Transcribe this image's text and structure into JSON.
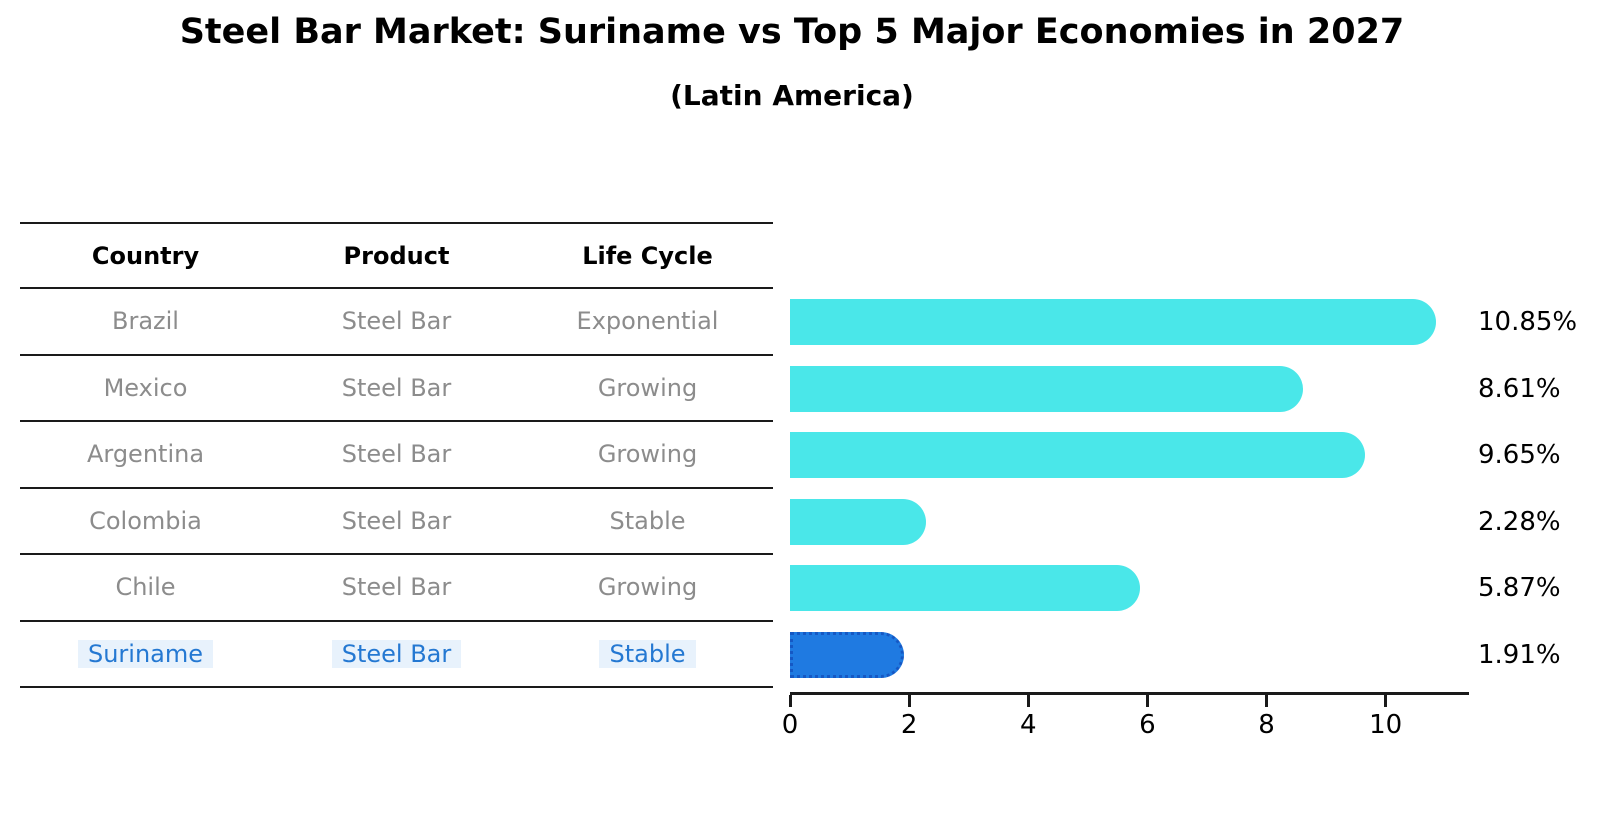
{
  "title": "Steel Bar Market: Suriname vs Top 5 Major Economies in 2027",
  "subtitle": "(Latin America)",
  "table": {
    "headers": {
      "country": "Country",
      "product": "Product",
      "life_cycle": "Life Cycle"
    },
    "rows": [
      {
        "country": "Brazil",
        "product": "Steel Bar",
        "life_cycle": "Exponential"
      },
      {
        "country": "Mexico",
        "product": "Steel Bar",
        "life_cycle": "Growing"
      },
      {
        "country": "Argentina",
        "product": "Steel Bar",
        "life_cycle": "Growing"
      },
      {
        "country": "Colombia",
        "product": "Steel Bar",
        "life_cycle": "Stable"
      },
      {
        "country": "Chile",
        "product": "Steel Bar",
        "life_cycle": "Growing"
      },
      {
        "country": "Suriname",
        "product": "Steel Bar",
        "life_cycle": "Stable"
      }
    ],
    "highlight_row": "Suriname"
  },
  "chart_data": {
    "type": "bar",
    "orientation": "horizontal",
    "categories": [
      "Brazil",
      "Mexico",
      "Argentina",
      "Colombia",
      "Chile",
      "Suriname"
    ],
    "values": [
      10.85,
      8.61,
      9.65,
      2.28,
      5.87,
      1.91
    ],
    "value_labels": [
      "10.85%",
      "8.61%",
      "9.65%",
      "2.28%",
      "5.87%",
      "1.91%"
    ],
    "xlim": [
      0,
      11.4
    ],
    "xticks": [
      0,
      2,
      4,
      6,
      8,
      10
    ],
    "xtick_labels": [
      "0",
      "2",
      "4",
      "6",
      "8",
      "10"
    ],
    "grid": false,
    "legend": "none",
    "highlight_index": 5,
    "colors": {
      "bar": "#4ae7e9",
      "highlight_bar": "#1f7ae1",
      "highlight_border": "#1558c4",
      "highlight_text": "#2478d2",
      "cell_text": "#8c8c8c",
      "axis": "#1a1a1a"
    }
  }
}
